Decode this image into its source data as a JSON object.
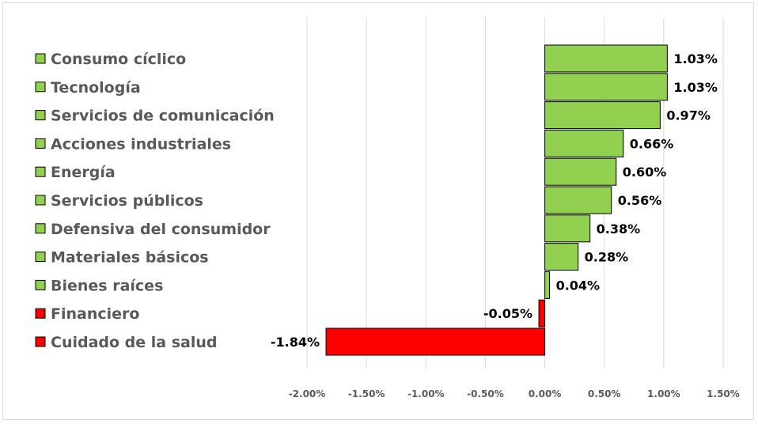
{
  "chart_data": {
    "type": "bar",
    "orientation": "horizontal",
    "title": "",
    "xlabel": "",
    "ylabel": "",
    "categories": [
      "Consumo cíclico",
      "Tecnología",
      "Servicios de comunicación",
      "Acciones industriales",
      "Energía",
      "Servicios públicos",
      "Defensiva del consumidor",
      "Materiales básicos",
      "Bienes raíces",
      "Financiero",
      "Cuidado de la salud"
    ],
    "values": [
      1.03,
      1.03,
      0.97,
      0.66,
      0.6,
      0.56,
      0.38,
      0.28,
      0.04,
      -0.05,
      -1.84
    ],
    "value_labels": [
      "1.03%",
      "1.03%",
      "0.97%",
      "0.66%",
      "0.60%",
      "0.56%",
      "0.38%",
      "0.28%",
      "0.04%",
      "-0.05%",
      "-1.84%"
    ],
    "xlim": [
      -2.0,
      1.5
    ],
    "xticks": [
      -2.0,
      -1.5,
      -1.0,
      -0.5,
      0.0,
      0.5,
      1.0,
      1.5
    ],
    "xtick_labels": [
      "-2.00%",
      "-1.50%",
      "-1.00%",
      "-0.50%",
      "0.00%",
      "0.50%",
      "1.00%",
      "1.50%"
    ],
    "grid": "vertical",
    "legend": "left",
    "colors": {
      "positive": "#92d050",
      "negative": "#ff0000",
      "border": "#000000",
      "grid": "#d9d9d9"
    }
  }
}
